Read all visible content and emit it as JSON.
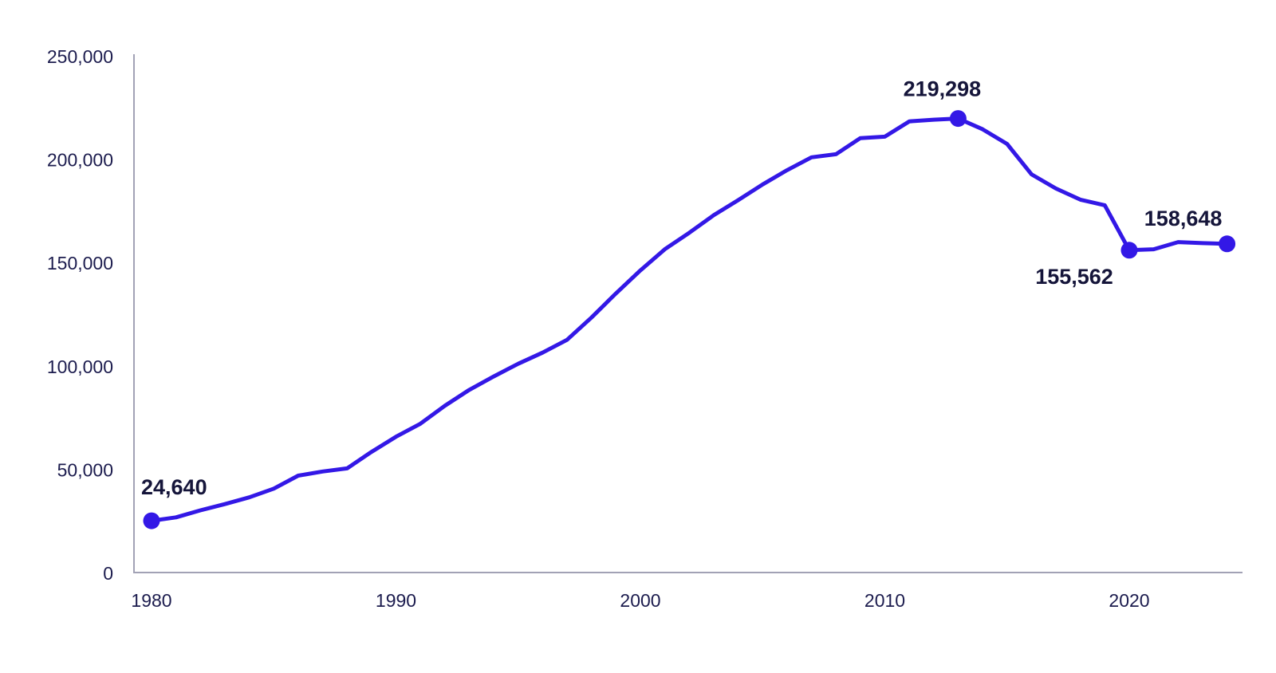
{
  "chart_data": {
    "type": "line",
    "title": "",
    "xlabel": "",
    "ylabel": "",
    "grid": false,
    "legend": false,
    "xlim": [
      1980,
      2024
    ],
    "ylim": [
      0,
      250000
    ],
    "x": [
      1980,
      1981,
      1982,
      1983,
      1984,
      1985,
      1986,
      1987,
      1988,
      1989,
      1990,
      1991,
      1992,
      1993,
      1994,
      1995,
      1996,
      1997,
      1998,
      1999,
      2000,
      2001,
      2002,
      2003,
      2004,
      2005,
      2006,
      2007,
      2008,
      2009,
      2010,
      2011,
      2012,
      2013,
      2014,
      2015,
      2016,
      2017,
      2018,
      2019,
      2020,
      2021,
      2022,
      2023,
      2024
    ],
    "values": [
      24640,
      26300,
      29700,
      32700,
      36000,
      40200,
      46500,
      48500,
      50000,
      58000,
      65300,
      71600,
      80300,
      88000,
      94500,
      100600,
      106000,
      112200,
      123000,
      134700,
      145800,
      156000,
      164000,
      172500,
      179800,
      187400,
      194300,
      200500,
      202000,
      209800,
      210500,
      217900,
      218700,
      219298,
      214100,
      207000,
      192300,
      185400,
      180000,
      177300,
      155562,
      156000,
      159500,
      159000,
      158648
    ],
    "xticks": {
      "values": [
        1980,
        1990,
        2000,
        2010,
        2020
      ],
      "labels": [
        "1980",
        "1990",
        "2000",
        "2010",
        "2020"
      ]
    },
    "yticks": {
      "values": [
        0,
        50000,
        100000,
        150000,
        200000,
        250000
      ],
      "labels": [
        "0",
        "50,000",
        "100,000",
        "150,000",
        "200,000",
        "250,000"
      ]
    },
    "annotated_points": [
      {
        "x": 1980,
        "value": 24640,
        "label": "24,640",
        "placement": "above-start"
      },
      {
        "x": 2013,
        "value": 219298,
        "label": "219,298",
        "placement": "above"
      },
      {
        "x": 2020,
        "value": 155562,
        "label": "155,562",
        "placement": "below-left"
      },
      {
        "x": 2024,
        "value": 158648,
        "label": "158,648",
        "placement": "above-left"
      }
    ],
    "marker_years": [
      1980,
      2013,
      2020,
      2024
    ],
    "colors": {
      "line": "#3318e6",
      "marker": "#3318e6",
      "axis": "#a2a2b5",
      "tick_text": "#1c1c4e",
      "annotation_text": "#15153a",
      "background": "#ffffff"
    }
  }
}
